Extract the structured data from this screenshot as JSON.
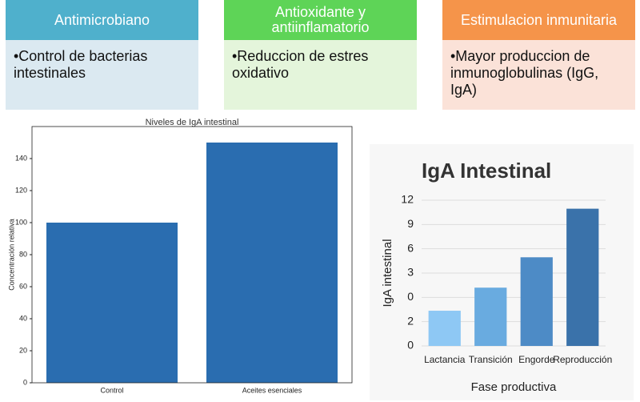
{
  "boxes": [
    {
      "title": "Antimicrobiano",
      "text": "•Control de bacterias intestinales"
    },
    {
      "title": "Antioxidante y antiinflamatorio",
      "text": "•Reduccion de estres oxidativo"
    },
    {
      "title": "Estimulacion inmunitaria",
      "text": "•Mayor produccion de inmunoglobulinas (IgG, IgA)"
    }
  ],
  "chart_data": [
    {
      "type": "bar",
      "title": "Niveles de IgA intestinal",
      "y_label": "Concentración relativa",
      "categories": [
        "Control",
        "Aceites esenciales"
      ],
      "values": [
        100,
        150
      ],
      "color": "#2a6db0",
      "ylim": [
        0,
        160
      ],
      "yticks": [
        0,
        20,
        40,
        60,
        80,
        100,
        120,
        140
      ],
      "grid": false
    },
    {
      "type": "bar",
      "title": "IgA Intestinal",
      "y_label": "IgA intestinal",
      "x_label": "Fase productiva",
      "categories": [
        "Lactancia",
        "Transición",
        "Engorde",
        "Reproducción"
      ],
      "values": [
        2.9,
        4.8,
        7.3,
        11.3
      ],
      "colors": [
        "#8ec8f4",
        "#69abe0",
        "#4d8bc6",
        "#3a72aa"
      ],
      "ylim": [
        0,
        12
      ],
      "yticks": [
        0,
        2,
        {
          "value": 4,
          "label": "0"
        },
        {
          "value": 6,
          "label": "3"
        },
        {
          "value": 8,
          "label": "6"
        },
        {
          "value": 10,
          "label": "9"
        },
        12
      ],
      "grid": true
    }
  ]
}
